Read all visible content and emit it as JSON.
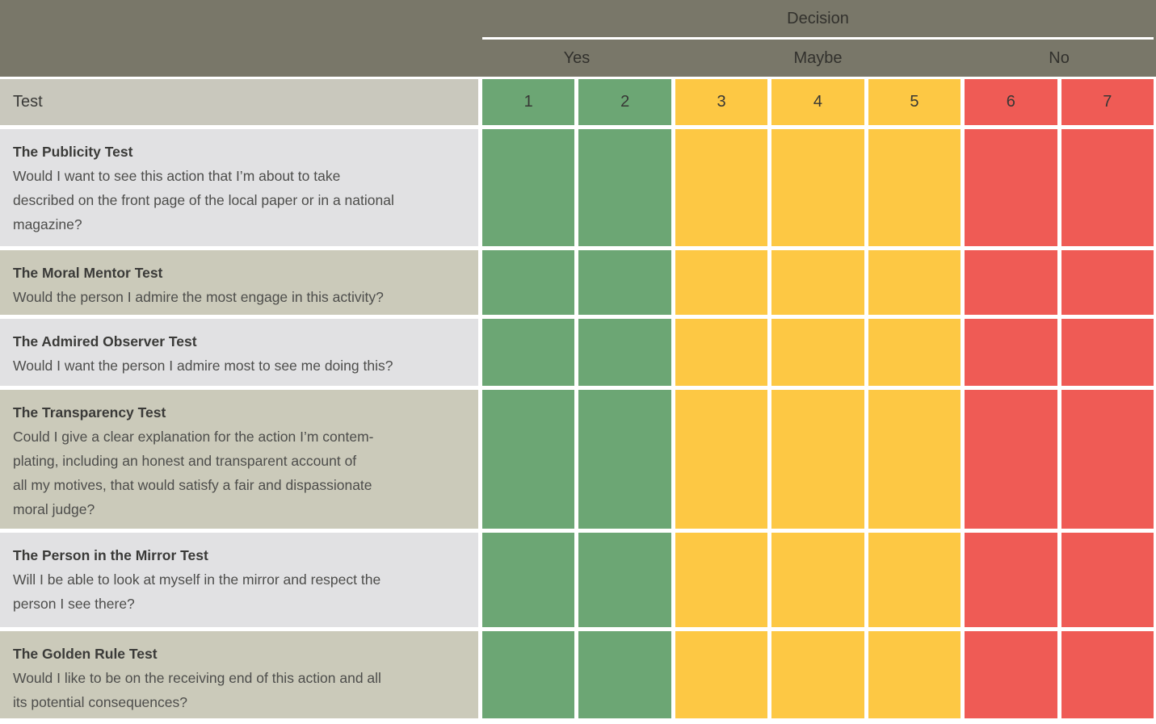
{
  "header": {
    "decision_label": "Decision",
    "options": [
      {
        "label": "Yes",
        "columns_spanned": 2
      },
      {
        "label": "Maybe",
        "columns_spanned": 3
      },
      {
        "label": "No",
        "columns_spanned": 2
      }
    ]
  },
  "table": {
    "test_header": "Test",
    "columns": [
      {
        "number": "1",
        "color": "green"
      },
      {
        "number": "2",
        "color": "green"
      },
      {
        "number": "3",
        "color": "yellow"
      },
      {
        "number": "4",
        "color": "yellow"
      },
      {
        "number": "5",
        "color": "yellow"
      },
      {
        "number": "6",
        "color": "red"
      },
      {
        "number": "7",
        "color": "red"
      }
    ],
    "rows": [
      {
        "title": "The Publicity Test",
        "description": "Would I want to see this action that I’m about to take\ndescribed on the front page of the local paper or in a national\nmagazine?"
      },
      {
        "title": "The Moral Mentor Test",
        "description": "Would the person I admire the most engage in this activity?"
      },
      {
        "title": "The Admired Observer Test",
        "description": "Would I want the person I admire most to see me doing this?"
      },
      {
        "title": "The Transparency Test",
        "description": "Could I give a clear explanation for the action I’m contem-\nplating, including an honest and transparent account of\nall my motives, that would satisfy a fair and dispassionate\nmoral judge?"
      },
      {
        "title": "The Person in the Mirror Test",
        "description": "Will I be able to look at myself in the mirror and respect the\nperson I see there?"
      },
      {
        "title": "The Golden Rule Test",
        "description": "Would I like to be on the receiving end of this action and all\nits potential consequences?"
      }
    ]
  },
  "colors": {
    "band": "#797769",
    "test_header_bg": "#c9c8bd",
    "row_light": "#e1e1e3",
    "row_dark": "#cbcaba",
    "green": "#6ca674",
    "yellow": "#fdc844",
    "red": "#ef5b55"
  }
}
